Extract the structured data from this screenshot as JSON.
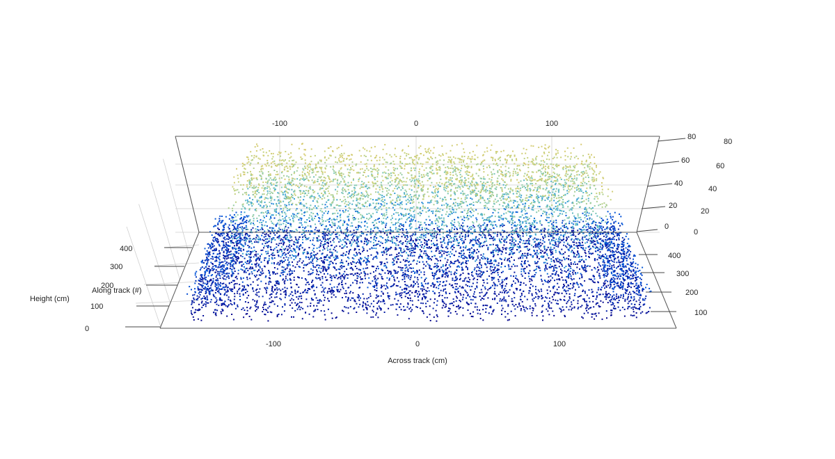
{
  "chart_data": {
    "type": "scatter",
    "subtype": "3d-point-cloud",
    "title": "",
    "xlabel": "Across track (cm)",
    "ylabel": "Along track (#)",
    "zlabel": "Height (cm)",
    "xlim": [
      -150,
      150
    ],
    "ylim": [
      0,
      450
    ],
    "zlim": [
      0,
      80
    ],
    "x_ticks": [
      "-100",
      "0",
      "100"
    ],
    "y_ticks": [
      "100",
      "200",
      "300",
      "400"
    ],
    "z_ticks": [
      "0",
      "20",
      "40",
      "60",
      "80"
    ],
    "right_y_ticks": [
      "100",
      "200",
      "300",
      "400"
    ],
    "right_z_ticks": [
      "0",
      "20",
      "40",
      "60",
      "80"
    ],
    "left_z_ticks": [
      "0",
      "100",
      "200",
      "300",
      "400"
    ],
    "color_scale": [
      "#00008b",
      "#0050d8",
      "#2f9ed6",
      "#7dc8b4",
      "#c8d27a",
      "#e8c46a"
    ],
    "grid": true
  }
}
